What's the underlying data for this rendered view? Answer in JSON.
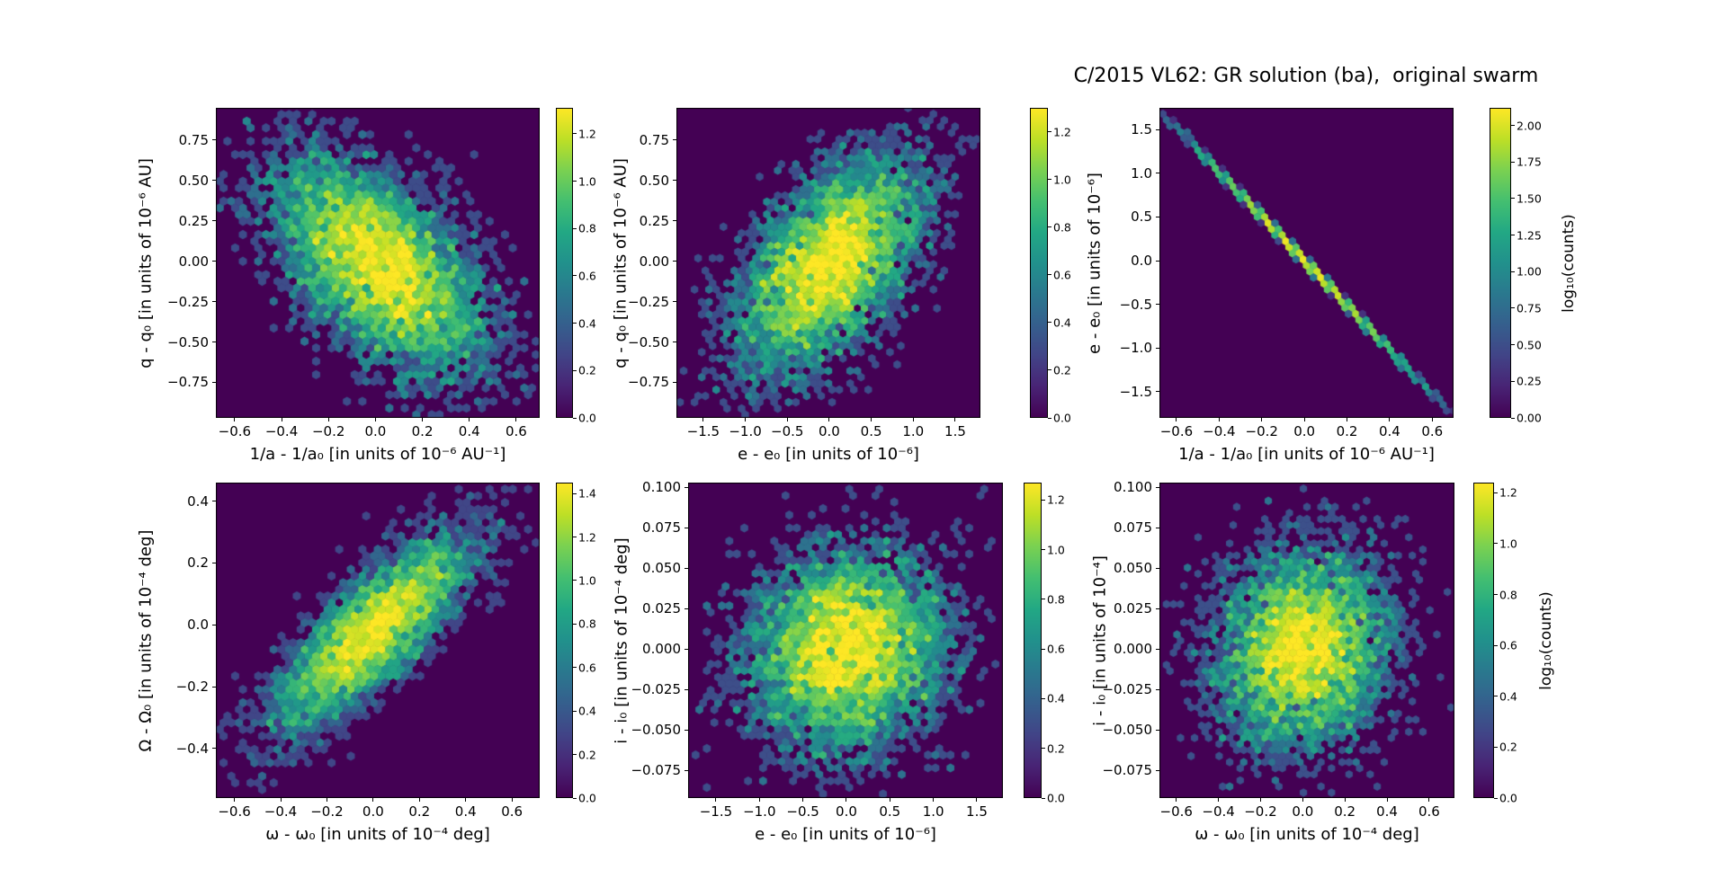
{
  "figure": {
    "title": "C/2015 VL62: GR solution (ba),  original swarm",
    "background": "#ffffff",
    "colormap": "viridis",
    "colormap_stops": [
      "#440154",
      "#482475",
      "#414487",
      "#355f8d",
      "#2a788e",
      "#21918c",
      "#22a884",
      "#44bf70",
      "#7ad151",
      "#bddf26",
      "#fde725"
    ]
  },
  "chart_data": [
    {
      "id": "q-vs-inva",
      "type": "hexbin",
      "xlabel": "1/a - 1/a₀ [in units of 10⁻⁶ AU⁻¹]",
      "ylabel": "q - q₀ [in units of 10⁻⁶ AU]",
      "xtick_labels": [
        "−0.6",
        "−0.4",
        "−0.2",
        "0.0",
        "0.2",
        "0.4",
        "0.6"
      ],
      "xtick_values": [
        -0.6,
        -0.4,
        -0.2,
        0.0,
        0.2,
        0.4,
        0.6
      ],
      "ytick_labels": [
        "0.75",
        "0.50",
        "0.25",
        "0.00",
        "−0.25",
        "−0.50",
        "−0.75"
      ],
      "ytick_values": [
        0.75,
        0.5,
        0.25,
        0.0,
        -0.25,
        -0.5,
        -0.75
      ],
      "xlim": [
        -0.68,
        0.7
      ],
      "ylim": [
        -0.97,
        0.95
      ],
      "gridsize": 42,
      "colorbar": {
        "tick_labels": [
          "0.0",
          "0.2",
          "0.4",
          "0.6",
          "0.8",
          "1.0",
          "1.2"
        ],
        "tick_values": [
          0.0,
          0.2,
          0.4,
          0.6,
          0.8,
          1.0,
          1.2
        ],
        "vmax": 1.31,
        "label": ""
      },
      "distribution": {
        "n": 5500,
        "cx": 0.02,
        "cy": -0.03,
        "sigma_x": 0.22,
        "sigma_y": 0.33,
        "rho": -0.55,
        "seed": 101
      }
    },
    {
      "id": "q-vs-e",
      "type": "hexbin",
      "xlabel": "e - e₀ [in units of 10⁻⁶]",
      "ylabel": "q - q₀ [in units of 10⁻⁶ AU]",
      "xtick_labels": [
        "−1.5",
        "−1.0",
        "−0.5",
        "0.0",
        "0.5",
        "1.0",
        "1.5"
      ],
      "xtick_values": [
        -1.5,
        -1.0,
        -0.5,
        0.0,
        0.5,
        1.0,
        1.5
      ],
      "ytick_labels": [
        "0.75",
        "0.50",
        "0.25",
        "0.00",
        "−0.25",
        "−0.50",
        "−0.75"
      ],
      "ytick_values": [
        0.75,
        0.5,
        0.25,
        0.0,
        -0.25,
        -0.5,
        -0.75
      ],
      "xlim": [
        -1.82,
        1.8
      ],
      "ylim": [
        -0.97,
        0.95
      ],
      "gridsize": 42,
      "colorbar": {
        "tick_labels": [
          "0.0",
          "0.2",
          "0.4",
          "0.6",
          "0.8",
          "1.0",
          "1.2"
        ],
        "tick_values": [
          0.0,
          0.2,
          0.4,
          0.6,
          0.8,
          1.0,
          1.2
        ],
        "vmax": 1.3,
        "label": ""
      },
      "distribution": {
        "n": 5500,
        "cx": 0.0,
        "cy": -0.02,
        "sigma_x": 0.55,
        "sigma_y": 0.33,
        "rho": 0.55,
        "seed": 202
      }
    },
    {
      "id": "e-vs-inva",
      "type": "hexbin",
      "xlabel": "1/a - 1/a₀ [in units of 10⁻⁶ AU⁻¹]",
      "ylabel": "e - e₀ [in units of 10⁻⁶]",
      "xtick_labels": [
        "−0.6",
        "−0.4",
        "−0.2",
        "0.0",
        "0.2",
        "0.4",
        "0.6"
      ],
      "xtick_values": [
        -0.6,
        -0.4,
        -0.2,
        0.0,
        0.2,
        0.4,
        0.6
      ],
      "ytick_labels": [
        "1.5",
        "1.0",
        "0.5",
        "0.0",
        "−0.5",
        "−1.0",
        "−1.5"
      ],
      "ytick_values": [
        1.5,
        1.0,
        0.5,
        0.0,
        -0.5,
        -1.0,
        -1.5
      ],
      "xlim": [
        -0.68,
        0.7
      ],
      "ylim": [
        -1.8,
        1.75
      ],
      "gridsize": 42,
      "colorbar": {
        "tick_labels": [
          "0.00",
          "0.25",
          "0.50",
          "0.75",
          "1.00",
          "1.25",
          "1.50",
          "1.75",
          "2.00"
        ],
        "tick_values": [
          0.0,
          0.25,
          0.5,
          0.75,
          1.0,
          1.25,
          1.5,
          1.75,
          2.0
        ],
        "vmax": 2.12,
        "label": "log₁₀(counts)"
      },
      "distribution": {
        "n": 2800,
        "cx": 0.0,
        "cy": 0.0,
        "sigma_x": 0.25,
        "sigma_y": 0.012,
        "rho": -1.0,
        "seed": 303,
        "line": {
          "slope": -2.55,
          "scatter": 0.012
        }
      }
    },
    {
      "id": "Omega-vs-omega",
      "type": "hexbin",
      "xlabel": "ω - ω₀ [in units of 10⁻⁴ deg]",
      "ylabel": "Ω - Ω₀ [in units of 10⁻⁴ deg]",
      "xtick_labels": [
        "−0.6",
        "−0.4",
        "−0.2",
        "0.0",
        "0.2",
        "0.4",
        "0.6"
      ],
      "xtick_values": [
        -0.6,
        -0.4,
        -0.2,
        0.0,
        0.2,
        0.4,
        0.6
      ],
      "ytick_labels": [
        "0.4",
        "0.2",
        "0.0",
        "−0.2",
        "−0.4"
      ],
      "ytick_values": [
        0.4,
        0.2,
        0.0,
        -0.2,
        -0.4
      ],
      "xlim": [
        -0.68,
        0.72
      ],
      "ylim": [
        -0.56,
        0.46
      ],
      "gridsize": 42,
      "colorbar": {
        "tick_labels": [
          "0.0",
          "0.2",
          "0.4",
          "0.6",
          "0.8",
          "1.0",
          "1.2",
          "1.4"
        ],
        "tick_values": [
          0.0,
          0.2,
          0.4,
          0.6,
          0.8,
          1.0,
          1.2,
          1.4
        ],
        "vmax": 1.45,
        "label": ""
      },
      "distribution": {
        "n": 4500,
        "cx": 0.0,
        "cy": -0.02,
        "sigma_x": 0.21,
        "sigma_y": 0.155,
        "rho": 0.8,
        "seed": 404
      }
    },
    {
      "id": "i-vs-e",
      "type": "hexbin",
      "xlabel": "e - e₀ [in units of 10⁻⁶]",
      "ylabel": "i - i₀ [in units of 10⁻⁴ deg]",
      "xtick_labels": [
        "−1.5",
        "−1.0",
        "−0.5",
        "0.0",
        "0.5",
        "1.0",
        "1.5"
      ],
      "xtick_values": [
        -1.5,
        -1.0,
        -0.5,
        0.0,
        0.5,
        1.0,
        1.5
      ],
      "ytick_labels": [
        "0.100",
        "0.075",
        "0.050",
        "0.025",
        "0.000",
        "−0.025",
        "−0.050",
        "−0.075"
      ],
      "ytick_values": [
        0.1,
        0.075,
        0.05,
        0.025,
        0.0,
        -0.025,
        -0.05,
        -0.075
      ],
      "xlim": [
        -1.82,
        1.8
      ],
      "ylim": [
        -0.092,
        0.103
      ],
      "gridsize": 42,
      "colorbar": {
        "tick_labels": [
          "0.0",
          "0.2",
          "0.4",
          "0.6",
          "0.8",
          "1.0",
          "1.2"
        ],
        "tick_values": [
          0.0,
          0.2,
          0.4,
          0.6,
          0.8,
          1.0,
          1.2
        ],
        "vmax": 1.27,
        "label": ""
      },
      "distribution": {
        "n": 5500,
        "cx": 0.0,
        "cy": 0.0,
        "sigma_x": 0.55,
        "sigma_y": 0.03,
        "rho": 0.08,
        "seed": 505
      }
    },
    {
      "id": "i-vs-omega",
      "type": "hexbin",
      "xlabel": "ω - ω₀ [in units of 10⁻⁴ deg]",
      "ylabel": "i - i₀ [in units of 10⁻⁴]",
      "xtick_labels": [
        "−0.6",
        "−0.4",
        "−0.2",
        "0.0",
        "0.2",
        "0.4",
        "0.6"
      ],
      "xtick_values": [
        -0.6,
        -0.4,
        -0.2,
        0.0,
        0.2,
        0.4,
        0.6
      ],
      "ytick_labels": [
        "0.100",
        "0.075",
        "0.050",
        "0.025",
        "0.000",
        "−0.025",
        "−0.050",
        "−0.075"
      ],
      "ytick_values": [
        0.1,
        0.075,
        0.05,
        0.025,
        0.0,
        -0.025,
        -0.05,
        -0.075
      ],
      "xlim": [
        -0.68,
        0.72
      ],
      "ylim": [
        -0.092,
        0.103
      ],
      "gridsize": 42,
      "colorbar": {
        "tick_labels": [
          "0.0",
          "0.2",
          "0.4",
          "0.6",
          "0.8",
          "1.0",
          "1.2"
        ],
        "tick_values": [
          0.0,
          0.2,
          0.4,
          0.6,
          0.8,
          1.0,
          1.2
        ],
        "vmax": 1.24,
        "label": "log₁₀(counts)"
      },
      "distribution": {
        "n": 5000,
        "cx": 0.0,
        "cy": 0.0,
        "sigma_x": 0.2,
        "sigma_y": 0.03,
        "rho": 0.08,
        "seed": 606
      }
    }
  ]
}
